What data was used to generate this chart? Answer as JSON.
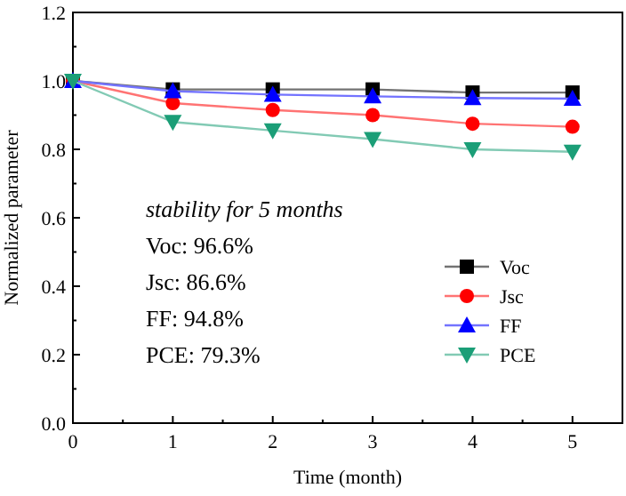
{
  "chart_data": {
    "type": "line",
    "xlabel": "Time (month)",
    "ylabel": "Normalized parameter",
    "x": [
      0,
      1,
      2,
      3,
      4,
      5
    ],
    "xlim": [
      0,
      5.5
    ],
    "xticks": [
      0,
      1,
      2,
      3,
      4,
      5
    ],
    "ylim": [
      0,
      1.2
    ],
    "yticks": [
      {
        "value": 0,
        "label": "0.0"
      },
      {
        "value": 0.2,
        "label": "0.2"
      },
      {
        "value": 0.4,
        "label": "0.4"
      },
      {
        "value": 0.6,
        "label": "0.6"
      },
      {
        "value": 0.8,
        "label": "0.8"
      },
      {
        "value": 1,
        "label": "1.0"
      },
      {
        "value": 1.2,
        "label": "1.2"
      }
    ],
    "series": [
      {
        "name": "Voc",
        "color": "#000000",
        "marker": "square",
        "values": [
          1,
          0.975,
          0.975,
          0.975,
          0.966,
          0.966
        ]
      },
      {
        "name": "Jsc",
        "color": "#ff0000",
        "marker": "circle",
        "values": [
          1,
          0.935,
          0.915,
          0.9,
          0.875,
          0.866
        ]
      },
      {
        "name": "FF",
        "color": "#0000ff",
        "marker": "triangle",
        "values": [
          1,
          0.97,
          0.96,
          0.955,
          0.95,
          0.948
        ]
      },
      {
        "name": "PCE",
        "color": "#1b9e77",
        "marker": "triangle-down",
        "values": [
          1,
          0.88,
          0.855,
          0.83,
          0.8,
          0.793
        ]
      }
    ],
    "annotations": [
      "stability for 5 months",
      "Voc: 96.6%",
      "Jsc: 86.6%",
      "FF: 94.8%",
      "PCE: 79.3%"
    ],
    "legend": "right",
    "grid": false,
    "line_style": "solid"
  }
}
